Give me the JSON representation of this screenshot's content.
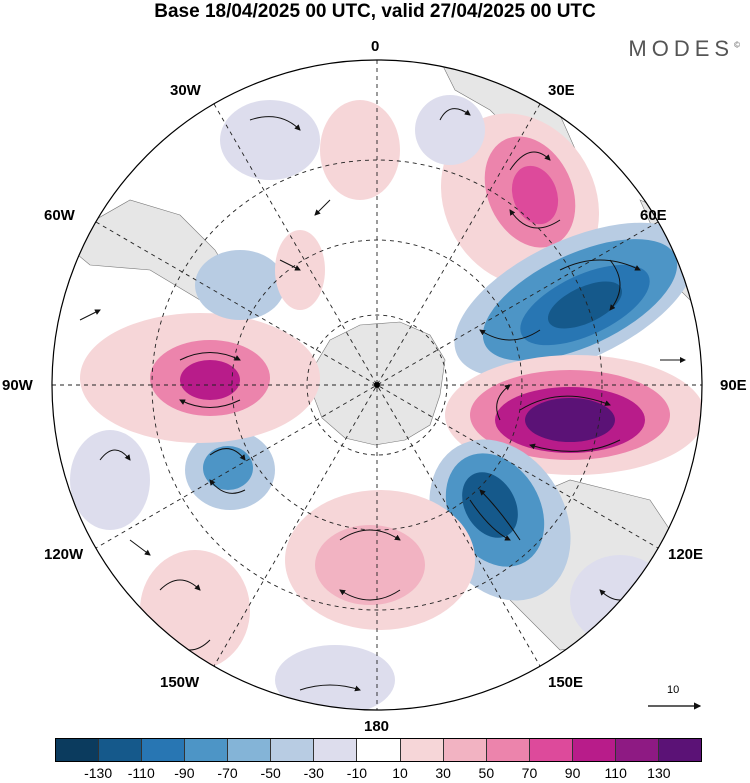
{
  "title": "Base 18/04/2025 00 UTC, valid 27/04/2025 00 UTC",
  "brand": "MODES",
  "brand_mark": "©",
  "longitude_labels": {
    "top": "0",
    "right_top": "30E",
    "upper_right": "60E",
    "right": "90E",
    "lower_right": "120E",
    "bottom_right": "150E",
    "bottom": "180",
    "bottom_left": "150W",
    "lower_left": "120W",
    "left": "90W",
    "upper_left": "60W",
    "left_top": "30W"
  },
  "vector_reference": "10",
  "colorbar": {
    "colors": [
      "#0b3b5e",
      "#15598b",
      "#2876b3",
      "#4d95c6",
      "#84b4d7",
      "#b8cce3",
      "#dddded",
      "#ffffff",
      "#f6d6d8",
      "#f2b3c2",
      "#ec84ac",
      "#dd4a9b",
      "#b81c8a",
      "#8e1a83",
      "#5b1276"
    ],
    "ticks": [
      "-130",
      "-110",
      "-90",
      "-70",
      "-50",
      "-30",
      "-10",
      "10",
      "30",
      "50",
      "70",
      "90",
      "110",
      "130"
    ]
  },
  "colors": {
    "land": "#e6e6e6",
    "positive_core": "#6f1d80",
    "negative_core": "#1a5f8f"
  }
}
